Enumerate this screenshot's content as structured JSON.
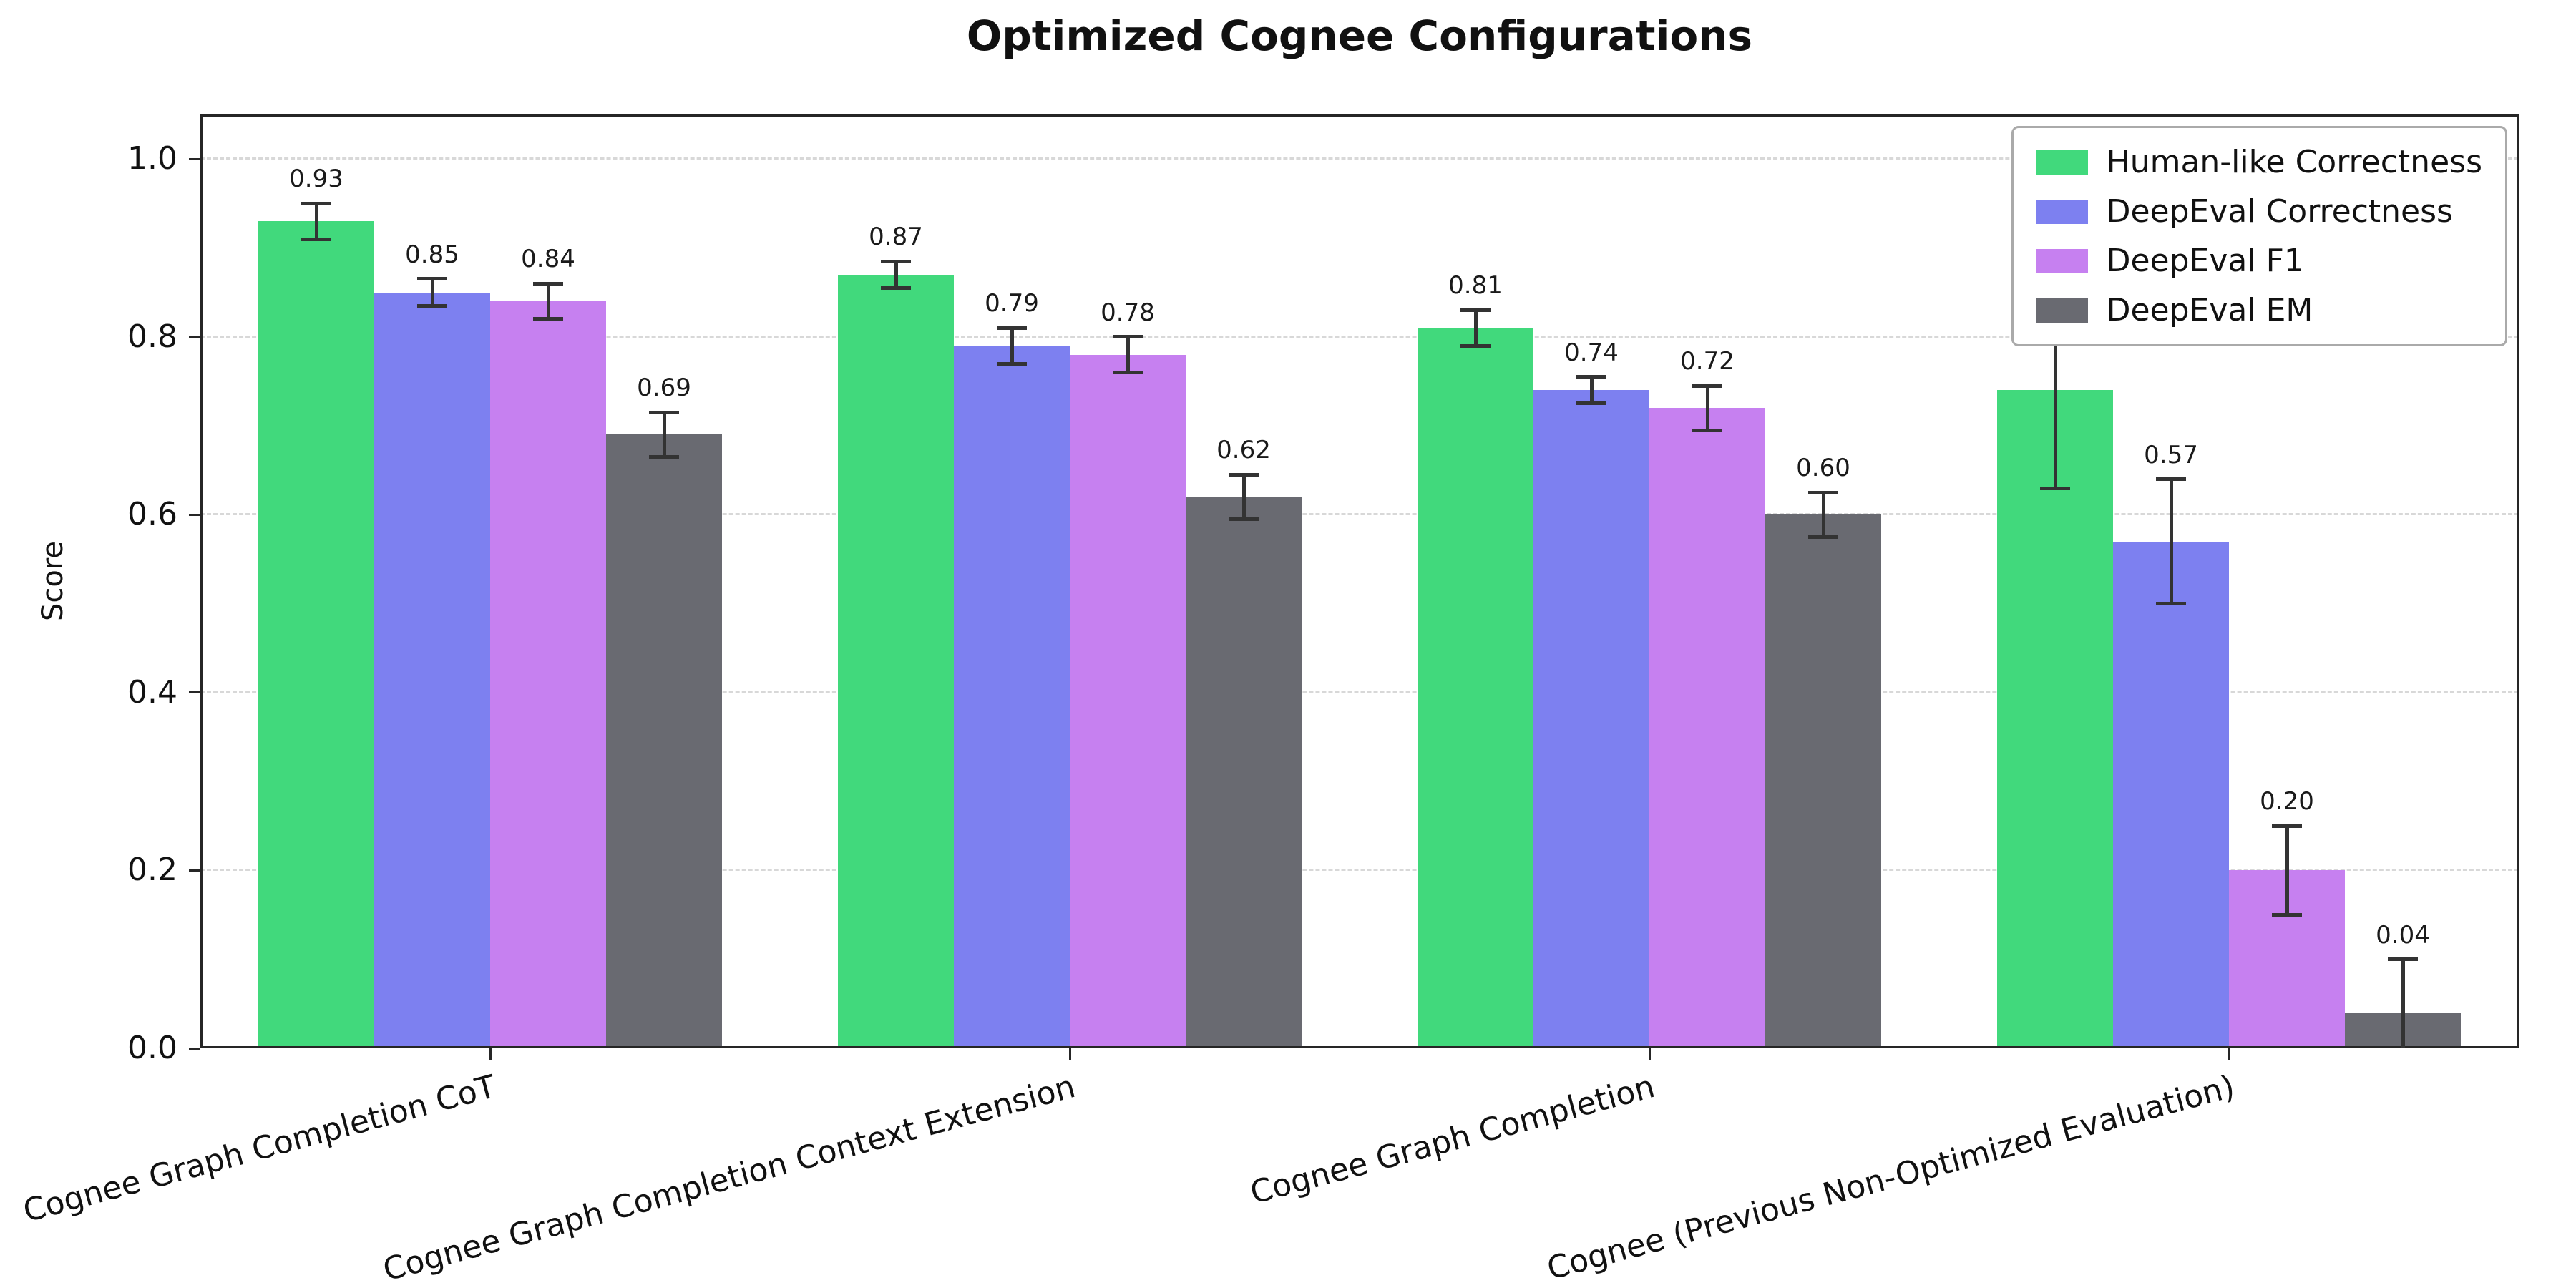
{
  "chart_data": {
    "type": "bar",
    "title": "Optimized Cognee Configurations",
    "xlabel": "",
    "ylabel": "Score",
    "ylim": [
      0,
      1.05
    ],
    "yticks": [
      0,
      0.2,
      0.4,
      0.6,
      0.8,
      1.0
    ],
    "grid": "horizontal-dashed",
    "legend_position": "upper-right",
    "error_bars": true,
    "bar_value_labels": true,
    "categories": [
      "Cognee Graph Completion CoT",
      "Cognee Graph Completion Context Extension",
      "Cognee Graph Completion",
      "Cognee (Previous Non-Optimized Evaluation)"
    ],
    "series": [
      {
        "name": "Human-like Correctness",
        "color": "#41d97c",
        "values": [
          0.93,
          0.87,
          0.81,
          0.74
        ],
        "errors": [
          0.02,
          0.015,
          0.02,
          0.11
        ]
      },
      {
        "name": "DeepEval Correctness",
        "color": "#7d80f0",
        "values": [
          0.85,
          0.79,
          0.74,
          0.57
        ],
        "errors": [
          0.015,
          0.02,
          0.015,
          0.07
        ]
      },
      {
        "name": "DeepEval F1",
        "color": "#c680f0",
        "values": [
          0.84,
          0.78,
          0.72,
          0.2
        ],
        "errors": [
          0.02,
          0.02,
          0.025,
          0.05
        ]
      },
      {
        "name": "DeepEval EM",
        "color": "#696a71",
        "values": [
          0.69,
          0.62,
          0.6,
          0.04
        ],
        "errors": [
          0.025,
          0.025,
          0.025,
          0.06
        ]
      }
    ]
  },
  "colors": {
    "background": "#ffffff",
    "grid": "#d8d8d8",
    "axis": "#262626",
    "errorbar": "#333333",
    "legend_border": "#aaaaaa",
    "text": "#111111"
  }
}
